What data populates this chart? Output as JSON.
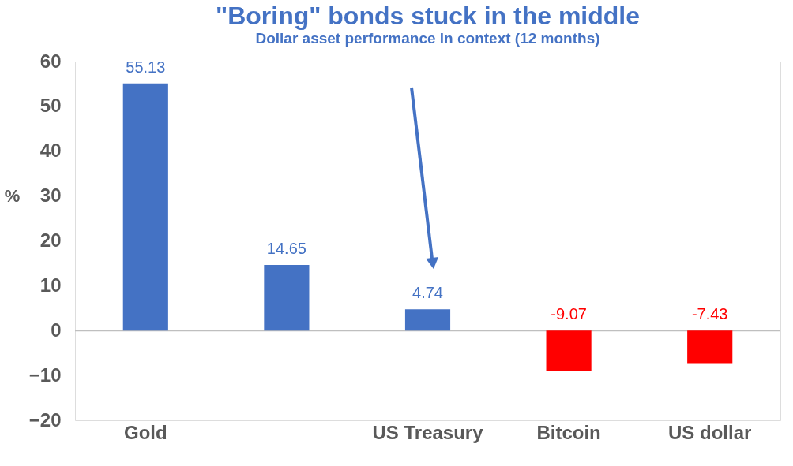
{
  "chart_data": {
    "type": "bar",
    "title": "\"Boring\" bonds stuck in the middle",
    "subtitle": "Dollar asset performance in context (12 months)",
    "ylabel": "%",
    "categories": [
      "Gold",
      null,
      "US Treasury",
      "Bitcoin",
      "US dollar"
    ],
    "values": [
      55.13,
      14.65,
      4.74,
      -9.07,
      -7.43
    ],
    "colors": [
      "#4472c4",
      "#4472c4",
      "#4472c4",
      "#ff0000",
      "#ff0000"
    ],
    "ylim": [
      -20,
      60
    ],
    "yticks": [
      -20,
      -10,
      0,
      10,
      20,
      30,
      40,
      50,
      60
    ],
    "ref_lines": [
      {
        "axis": "y",
        "value": 0,
        "color": "#bfbfbf"
      }
    ],
    "data_labels": true,
    "grid": false
  }
}
